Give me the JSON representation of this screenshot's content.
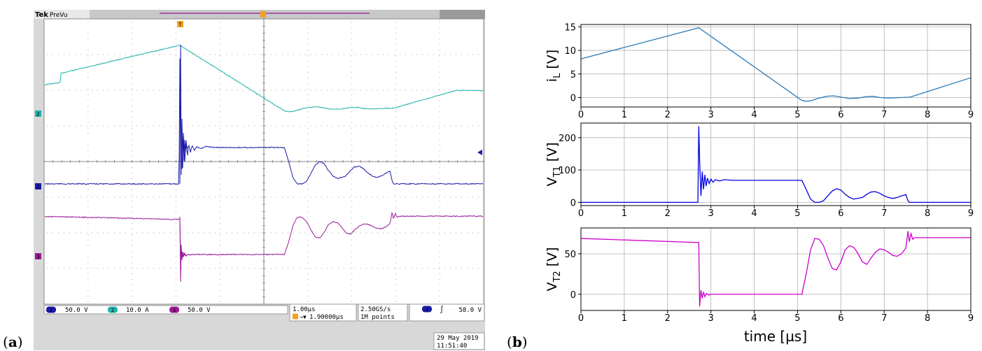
{
  "panel_a": {
    "label_open": "(",
    "label_letter": "a",
    "label_close": ")",
    "brand": "Tek",
    "mode": "PreVu",
    "trigger_marker": "T",
    "channel_markers": [
      "2",
      "1",
      "3"
    ],
    "status": {
      "ch1_num": "1",
      "ch1_scale": "50.0 V",
      "ch2_num": "2",
      "ch2_scale": "10.0 A",
      "ch3_num": "3",
      "ch3_scale": "50.0 V",
      "timebase": "1.00µs",
      "delay": "1.90000µs",
      "sample_rate": "2.50GS/s",
      "record_length": "1M points",
      "trig_source": "1",
      "trig_slope": "∫",
      "trig_level": "58.0 V",
      "date": "29 May 2019",
      "time": "11:51:40"
    },
    "colors": {
      "ch1": "#1a1aa8",
      "ch2": "#20b2aa",
      "ch3": "#9b1a9b",
      "trigger": "#f5a020"
    }
  },
  "panel_b": {
    "label_open": "(",
    "label_letter": "b",
    "label_close": ")",
    "xlabel": "time [µs]"
  },
  "chart_data": [
    {
      "type": "line",
      "ylabel_main": "i",
      "ylabel_sub": "L",
      "ylabel_unit": " [V]",
      "xlim": [
        0,
        9
      ],
      "ylim": [
        -2,
        15.5
      ],
      "xticks": [
        0,
        1,
        2,
        3,
        4,
        5,
        6,
        7,
        8,
        9
      ],
      "yticks": [
        0,
        5,
        10,
        15
      ],
      "grid": true,
      "color": "#2a7ab8",
      "series": [
        {
          "x": [
            0,
            2.72,
            5.1,
            5.2,
            5.3,
            5.5,
            5.7,
            5.85,
            6.0,
            6.2,
            6.4,
            6.6,
            6.75,
            6.9,
            7.1,
            7.4,
            7.6,
            9.0
          ],
          "y": [
            8.2,
            14.8,
            -0.6,
            -0.8,
            -0.7,
            -0.1,
            0.3,
            0.35,
            0.1,
            -0.2,
            -0.1,
            0.2,
            0.25,
            0.0,
            -0.1,
            0.0,
            0.1,
            4.2
          ]
        }
      ]
    },
    {
      "type": "line",
      "ylabel_main": "V",
      "ylabel_sub": "T1",
      "ylabel_unit": " [V]",
      "xlim": [
        0,
        9
      ],
      "ylim": [
        -10,
        245
      ],
      "xticks": [
        0,
        1,
        2,
        3,
        4,
        5,
        6,
        7,
        8,
        9
      ],
      "yticks": [
        0,
        100,
        200
      ],
      "grid": true,
      "color": "#0000dd",
      "series": [
        {
          "x": [
            0,
            2.7,
            2.72,
            2.74,
            2.77,
            2.8,
            2.83,
            2.86,
            2.89,
            2.92,
            2.96,
            3.0,
            3.05,
            3.1,
            3.2,
            3.3,
            3.5,
            4.0,
            5.0,
            5.1,
            5.2,
            5.3,
            5.4,
            5.5,
            5.6,
            5.7,
            5.8,
            5.9,
            6.0,
            6.1,
            6.2,
            6.3,
            6.5,
            6.6,
            6.7,
            6.8,
            6.9,
            7.0,
            7.1,
            7.2,
            7.3,
            7.4,
            7.5,
            7.55,
            7.58,
            7.6,
            9.0
          ],
          "y": [
            0,
            0,
            235,
            130,
            20,
            95,
            40,
            85,
            50,
            75,
            58,
            72,
            62,
            70,
            66,
            70,
            68,
            68,
            68,
            68,
            40,
            10,
            0,
            0,
            5,
            20,
            35,
            42,
            38,
            25,
            15,
            10,
            15,
            25,
            32,
            33,
            28,
            20,
            15,
            12,
            15,
            20,
            24,
            5,
            0,
            0,
            0
          ]
        }
      ]
    },
    {
      "type": "line",
      "ylabel_main": "V",
      "ylabel_sub": "T2",
      "ylabel_unit": " [V]",
      "xlim": [
        0,
        9
      ],
      "ylim": [
        -20,
        82
      ],
      "xticks": [
        0,
        1,
        2,
        3,
        4,
        5,
        6,
        7,
        8,
        9
      ],
      "yticks": [
        0,
        50
      ],
      "grid": true,
      "color": "#cc00cc",
      "series": [
        {
          "x": [
            0,
            2.72,
            2.74,
            2.77,
            2.8,
            2.83,
            2.86,
            2.9,
            2.95,
            3.0,
            3.05,
            3.1,
            3.2,
            4.0,
            5.0,
            5.1,
            5.2,
            5.3,
            5.4,
            5.5,
            5.6,
            5.7,
            5.8,
            5.9,
            6.0,
            6.1,
            6.2,
            6.3,
            6.4,
            6.5,
            6.6,
            6.7,
            6.8,
            6.9,
            7.0,
            7.1,
            7.2,
            7.3,
            7.4,
            7.5,
            7.55,
            7.58,
            7.62,
            7.66,
            7.7,
            7.8,
            9.0
          ],
          "y": [
            69,
            64,
            -15,
            5,
            -5,
            3,
            -3,
            1,
            -1,
            0,
            0,
            0,
            0,
            0,
            0,
            0,
            25,
            55,
            69,
            68,
            60,
            45,
            32,
            30,
            40,
            55,
            60,
            58,
            50,
            40,
            37,
            45,
            52,
            56,
            55,
            52,
            48,
            47,
            50,
            57,
            78,
            65,
            75,
            68,
            70,
            70,
            70
          ]
        }
      ]
    }
  ]
}
